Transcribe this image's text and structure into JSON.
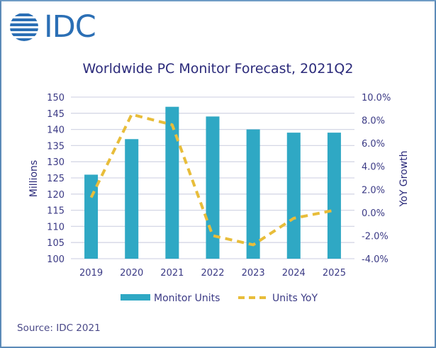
{
  "logo": {
    "text": "IDC",
    "icon": "globe-stripes-icon",
    "color": "#2b6fb5"
  },
  "source": "Source: IDC 2021",
  "colors": {
    "bar": "#2fa8c4",
    "line": "#e8bd3a",
    "grid": "#d5d7e6",
    "text": "#3b3a85"
  },
  "chart_data": {
    "type": "bar",
    "title": "Worldwide PC Monitor Forecast, 2021Q2",
    "categories": [
      "2019",
      "2020",
      "2021",
      "2022",
      "2023",
      "2024",
      "2025"
    ],
    "series": [
      {
        "name": "Monitor Units",
        "type": "bar",
        "axis": "left",
        "values": [
          126,
          137,
          147,
          144,
          140,
          139,
          139
        ]
      },
      {
        "name": "Units YoY",
        "type": "line",
        "style": "dashed",
        "axis": "right",
        "values": [
          1.3,
          8.5,
          7.6,
          -2.0,
          -2.8,
          -0.5,
          0.2
        ]
      }
    ],
    "ylabel": "Millions",
    "ylim": [
      100,
      150
    ],
    "yticks": [
      "100",
      "105",
      "110",
      "115",
      "120",
      "125",
      "130",
      "135",
      "140",
      "145",
      "150"
    ],
    "y2label": "YoY Growth",
    "y2lim": [
      -4,
      10
    ],
    "y2ticks": [
      "-4.0%",
      "-2.0%",
      "0.0%",
      "2.0%",
      "4.0%",
      "6.0%",
      "8.0%",
      "10.0%"
    ],
    "grid": true,
    "legend": {
      "position": "bottom",
      "entries": [
        "Monitor Units",
        "Units YoY"
      ]
    }
  }
}
